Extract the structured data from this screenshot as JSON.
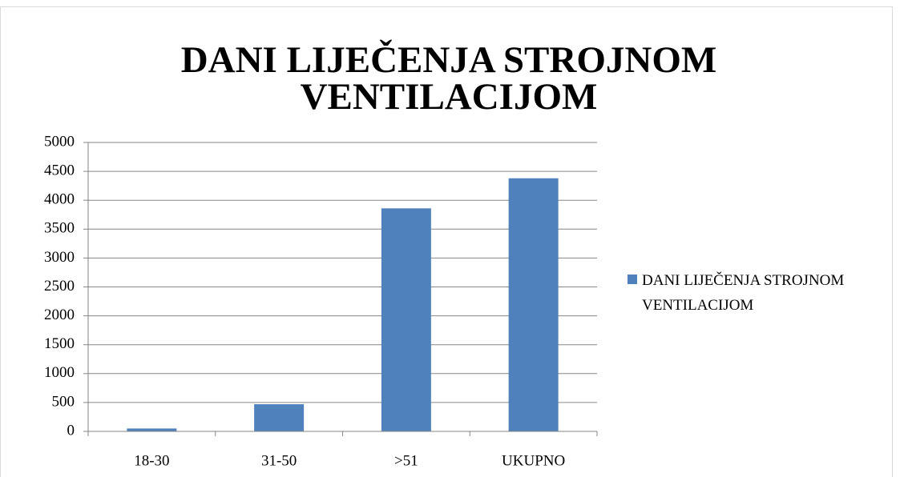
{
  "chart_data": {
    "type": "bar",
    "title": "DANI LIJEČENJA STROJNOM VENTILACIJOM",
    "categories": [
      "18-30",
      "31-50",
      ">51",
      "UKUPNO"
    ],
    "series": [
      {
        "name": "DANI LIJEČENJA STROJNOM VENTILACIJOM",
        "color": "#4f81bd",
        "values": [
          50,
          470,
          3860,
          4380
        ]
      }
    ],
    "ylim": [
      0,
      5000
    ],
    "yticks": [
      0,
      500,
      1000,
      1500,
      2000,
      2500,
      3000,
      3500,
      4000,
      4500,
      5000
    ],
    "grid": true,
    "legend": "right"
  }
}
